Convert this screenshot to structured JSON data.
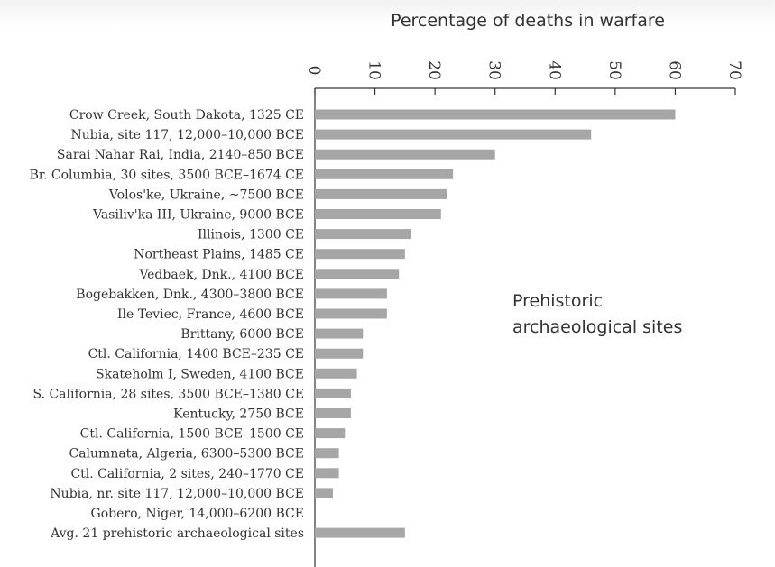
{
  "chart_data": {
    "type": "bar",
    "orientation": "horizontal",
    "x_axis_label": "Percentage of deaths in warfare",
    "x_axis_position": "top",
    "xlim": [
      0,
      70
    ],
    "ticks": [
      0,
      10,
      20,
      30,
      40,
      50,
      60,
      70
    ],
    "tick_labels": [
      "0",
      "10",
      "20",
      "30",
      "40",
      "50",
      "60",
      "70"
    ],
    "tick_label_rotation": "rotated 90 degrees",
    "grid": false,
    "bar_color": "#a6a6a6",
    "annotation": [
      "Prehistoric",
      "archaeological sites"
    ],
    "categories": [
      "Crow Creek, South Dakota, 1325 CE",
      "Nubia, site 117, 12,000–10,000 BCE",
      "Sarai Nahar Rai, India, 2140–850 BCE",
      "Br. Columbia, 30 sites, 3500 BCE–1674 CE",
      "Volos'ke, Ukraine, ~7500 BCE",
      "Vasiliv'ka III, Ukraine, 9000 BCE",
      "Illinois, 1300 CE",
      "Northeast Plains, 1485 CE",
      "Vedbaek, Dnk., 4100 BCE",
      "Bogebakken, Dnk., 4300–3800 BCE",
      "Ile Teviec, France, 4600 BCE",
      "Brittany, 6000 BCE",
      "Ctl. California, 1400 BCE–235 CE",
      "Skateholm I, Sweden, 4100 BCE",
      "S. California, 28 sites, 3500 BCE–1380 CE",
      "Kentucky, 2750 BCE",
      "Ctl. California, 1500 BCE–1500 CE",
      "Calumnata, Algeria, 6300–5300 BCE",
      "Ctl. California, 2 sites, 240–1770 CE",
      "Nubia, nr. site 117, 12,000–10,000 BCE",
      "Gobero, Niger, 14,000–6200 BCE",
      "Avg. 21 prehistoric archaeological sites"
    ],
    "values": [
      60,
      46,
      30,
      23,
      22,
      21,
      16,
      15,
      14,
      12,
      12,
      8,
      8,
      7,
      6,
      6,
      5,
      4,
      4,
      3,
      0,
      15
    ]
  }
}
